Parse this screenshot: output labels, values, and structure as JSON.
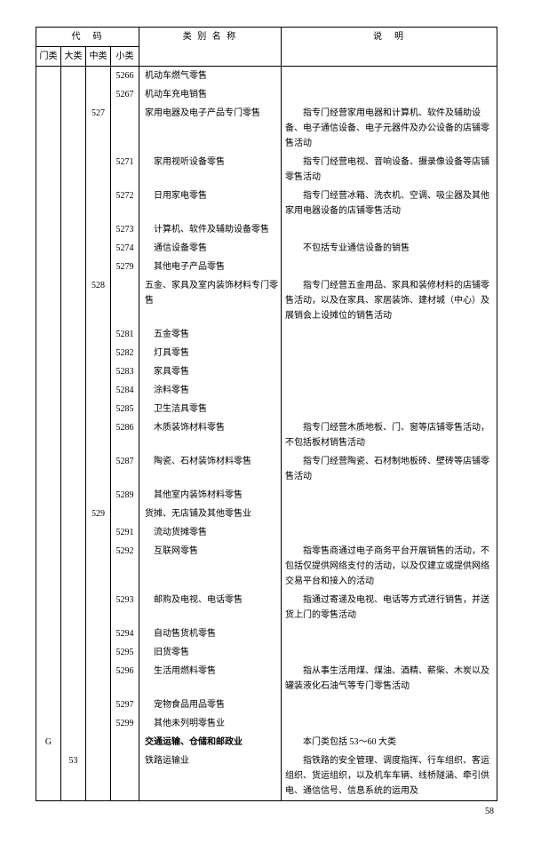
{
  "headers": {
    "code": "代　码",
    "name": "类 别 名 称",
    "desc": "说　明",
    "menlei": "门类",
    "dalei": "大类",
    "zhonglei": "中类",
    "xiaolei": "小类"
  },
  "rows": [
    {
      "c4": "5266",
      "name": "机动车燃气零售"
    },
    {
      "c4": "5267",
      "name": "机动车充电销售"
    },
    {
      "c3": "527",
      "name": "家用电器及电子产品专门零售",
      "desc": "　　指专门经营家用电器和计算机、软件及辅助设备、电子通信设备、电子元器件及办公设备的店铺零售活动"
    },
    {
      "c4": "5271",
      "name": "　家用视听设备零售",
      "desc": "　　指专门经营电视、音响设备、摄录像设备等店铺零售活动"
    },
    {
      "c4": "5272",
      "name": "　日用家电零售",
      "desc": "　　指专门经营冰箱、洗衣机、空调、吸尘器及其他家用电器设备的店铺零售活动"
    },
    {
      "c4": "5273",
      "name": "　计算机、软件及辅助设备零售"
    },
    {
      "c4": "5274",
      "name": "　通信设备零售",
      "desc": "　　不包括专业通信设备的销售"
    },
    {
      "c4": "5279",
      "name": "　其他电子产品零售"
    },
    {
      "c3": "528",
      "name": "五金、家具及室内装饰材料专门零售",
      "desc": "　　指专门经营五金用品、家具和装修材料的店铺零售活动，以及在家具、家居装饰、建材城（中心）及展销会上设摊位的销售活动"
    },
    {
      "c4": "5281",
      "name": "　五金零售"
    },
    {
      "c4": "5282",
      "name": "　灯具零售"
    },
    {
      "c4": "5283",
      "name": "　家具零售"
    },
    {
      "c4": "5284",
      "name": "　涂料零售"
    },
    {
      "c4": "5285",
      "name": "　卫生洁具零售"
    },
    {
      "c4": "5286",
      "name": "　木质装饰材料零售",
      "desc": "　　指专门经营木质地板、门、窗等店铺零售活动，不包括板材销售活动"
    },
    {
      "c4": "5287",
      "name": "　陶瓷、石材装饰材料零售",
      "desc": "　　指专门经营陶瓷、石材制地板砖、壁砖等店铺零售活动"
    },
    {
      "c4": "5289",
      "name": "　其他室内装饰材料零售"
    },
    {
      "c3": "529",
      "name": "货摊、无店铺及其他零售业"
    },
    {
      "c4": "5291",
      "name": "　流动货摊零售"
    },
    {
      "c4": "5292",
      "name": "　互联网零售",
      "desc": "　　指零售商通过电子商务平台开展销售的活动，不包括仅提供网络支付的活动，以及仅建立或提供网络交易平台和接入的活动"
    },
    {
      "c4": "5293",
      "name": "　邮购及电视、电话零售",
      "desc": "　　指通过寄递及电视、电话等方式进行销售，并送货上门的零售活动"
    },
    {
      "c4": "5294",
      "name": "　自动售货机零售"
    },
    {
      "c4": "5295",
      "name": "　旧货零售"
    },
    {
      "c4": "5296",
      "name": "　生活用燃料零售",
      "desc": "　　指从事生活用煤、煤油、酒精、薪柴、木炭以及罐装液化石油气等专门零售活动"
    },
    {
      "c4": "5297",
      "name": "　宠物食品用品零售"
    },
    {
      "c4": "5299",
      "name": "　其他未列明零售业"
    },
    {
      "c1": "G",
      "name": "交通运输、仓储和邮政业",
      "bold": true,
      "desc": "　　本门类包括 53～60 大类"
    },
    {
      "c2": "53",
      "name": "铁路运输业",
      "desc": "　　指铁路的安全管理、调度指挥、行车组织、客运组织、货运组织，以及机车车辆、线桥隧涵、牵引供电、通信信号、信息系统的运用及",
      "last": true
    }
  ],
  "pageNumber": "58"
}
